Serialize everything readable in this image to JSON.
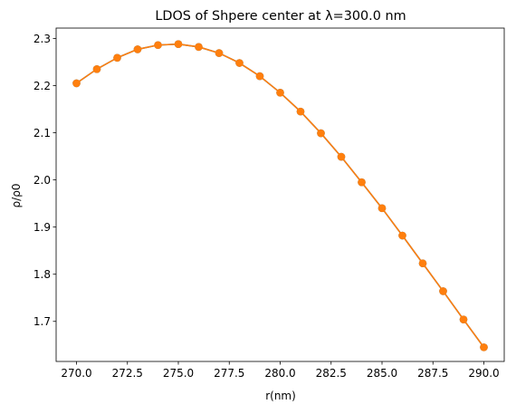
{
  "chart_data": {
    "type": "line",
    "title": "LDOS of Shpere center at λ=300.0 nm",
    "xlabel": "r(nm)",
    "ylabel": "ρ/ρ0",
    "xlim": [
      269.0,
      291.0
    ],
    "ylim": [
      1.615,
      2.322
    ],
    "xticks": [
      270.0,
      272.5,
      275.0,
      277.5,
      280.0,
      282.5,
      285.0,
      287.5,
      290.0
    ],
    "xtick_labels": [
      "270.0",
      "272.5",
      "275.0",
      "277.5",
      "280.0",
      "282.5",
      "285.0",
      "287.5",
      "290.0"
    ],
    "yticks": [
      1.7,
      1.8,
      1.9,
      2.0,
      2.1,
      2.2,
      2.3
    ],
    "ytick_labels": [
      "1.7",
      "1.8",
      "1.9",
      "2.0",
      "2.1",
      "2.2",
      "2.3"
    ],
    "grid": false,
    "x": [
      270,
      271,
      272,
      273,
      274,
      275,
      276,
      277,
      278,
      279,
      280,
      281,
      282,
      283,
      284,
      285,
      286,
      287,
      288,
      289,
      290
    ],
    "series": [
      {
        "color": "#1f77b4",
        "marker": "circle",
        "values": [
          2.205,
          2.235,
          2.259,
          2.277,
          2.286,
          2.288,
          2.282,
          2.269,
          2.248,
          2.22,
          2.185,
          2.145,
          2.099,
          2.049,
          1.995,
          1.94,
          1.882,
          1.823,
          1.764,
          1.704,
          1.645
        ]
      },
      {
        "color": "#ff7f0e",
        "marker": "circle",
        "values": [
          2.205,
          2.235,
          2.259,
          2.277,
          2.286,
          2.288,
          2.282,
          2.269,
          2.248,
          2.22,
          2.185,
          2.145,
          2.099,
          2.049,
          1.995,
          1.94,
          1.882,
          1.823,
          1.764,
          1.704,
          1.645
        ]
      }
    ]
  }
}
